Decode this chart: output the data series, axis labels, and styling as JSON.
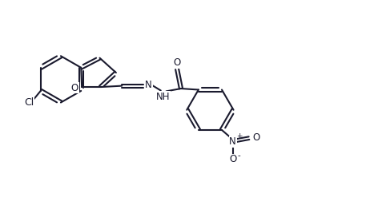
{
  "background_color": "#ffffff",
  "line_color": "#1a1a2e",
  "line_width": 1.5,
  "font_size": 8.5,
  "figsize": [
    4.87,
    2.57
  ],
  "dpi": 100,
  "xlim": [
    0,
    10
  ],
  "ylim": [
    0,
    5.2
  ]
}
